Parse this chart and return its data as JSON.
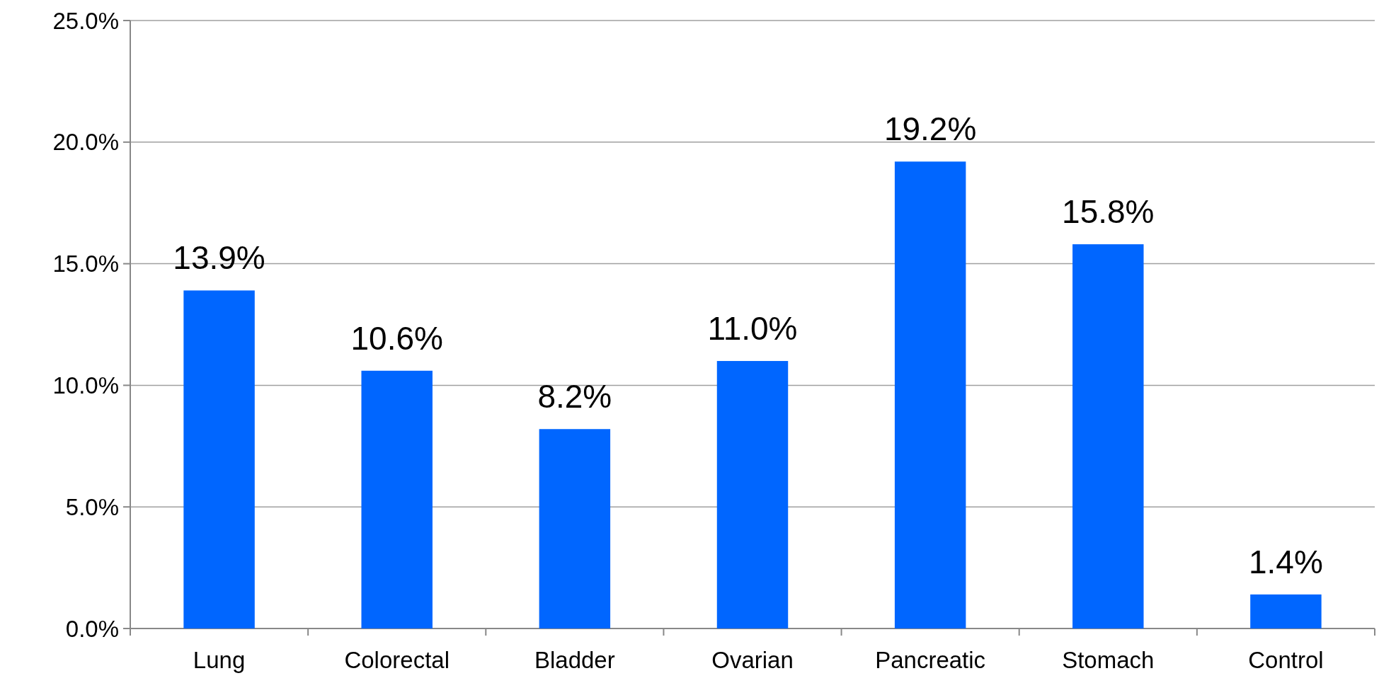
{
  "chart_data": {
    "type": "bar",
    "categories": [
      "Lung",
      "Colorectal",
      "Bladder",
      "Ovarian",
      "Pancreatic",
      "Stomach",
      "Control"
    ],
    "values": [
      13.9,
      10.6,
      8.2,
      11.0,
      19.2,
      15.8,
      1.4
    ],
    "value_labels": [
      "13.9%",
      "10.6%",
      "8.2%",
      "11.0%",
      "19.2%",
      "15.8%",
      "1.4%"
    ],
    "color": "#0066ff",
    "ylim": [
      0,
      25
    ],
    "yticks": [
      {
        "value": 0,
        "label": "0.0%"
      },
      {
        "value": 5,
        "label": "5.0%"
      },
      {
        "value": 10,
        "label": "10.0%"
      },
      {
        "value": 15,
        "label": "15.0%"
      },
      {
        "value": 20,
        "label": "20.0%"
      },
      {
        "value": 25,
        "label": "25.0%"
      }
    ],
    "grid": "y"
  }
}
